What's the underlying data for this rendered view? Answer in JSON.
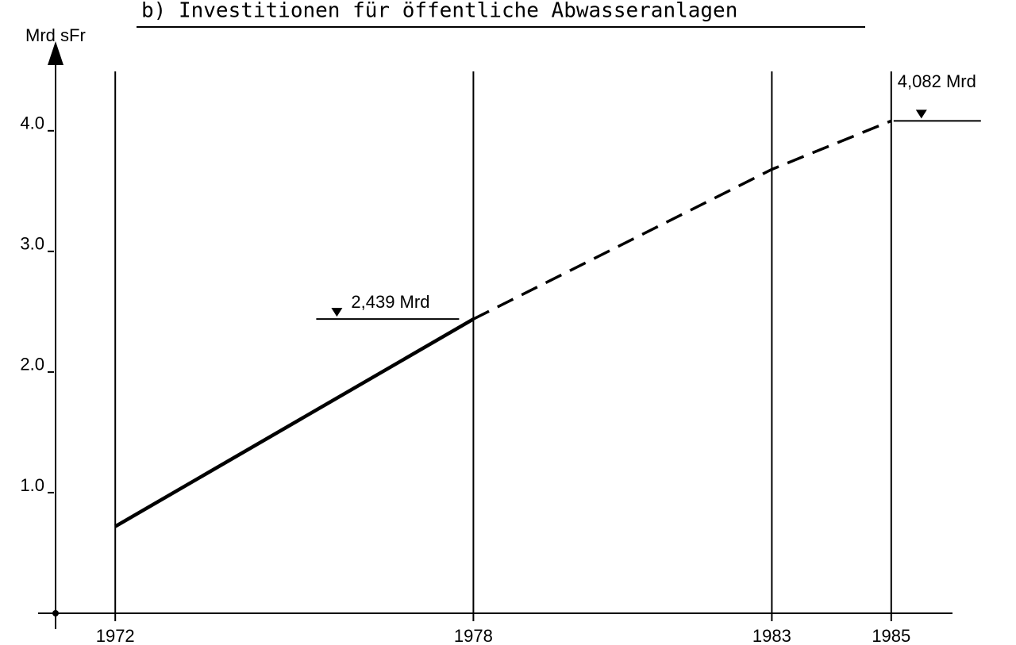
{
  "chart_data": {
    "type": "line",
    "title": "b) Investitionen für öffentliche Abwasseranlagen",
    "y_label": "Mrd sFr",
    "x": [
      1972,
      1978,
      1983,
      1985
    ],
    "series": [
      {
        "color": "#000000",
        "style": "solid",
        "values": [
          0.72,
          2.439,
          null,
          null
        ]
      },
      {
        "color": "#000000",
        "style": "dashed",
        "values": [
          null,
          2.439,
          3.68,
          4.082
        ],
        "value_labels": [
          null,
          "2,439 Mrd",
          null,
          "4,082 Mrd"
        ]
      }
    ],
    "xlim": [
      1971,
      1986
    ],
    "xticks": [
      1972,
      1978,
      1983,
      1985
    ],
    "ylim": [
      0,
      4.65
    ],
    "yticks": [
      {
        "value": 1,
        "label": "1.0"
      },
      {
        "value": 2,
        "label": "2.0"
      },
      {
        "value": 3,
        "label": "3.0"
      },
      {
        "value": 4,
        "label": "4.0"
      }
    ],
    "grid": true
  }
}
